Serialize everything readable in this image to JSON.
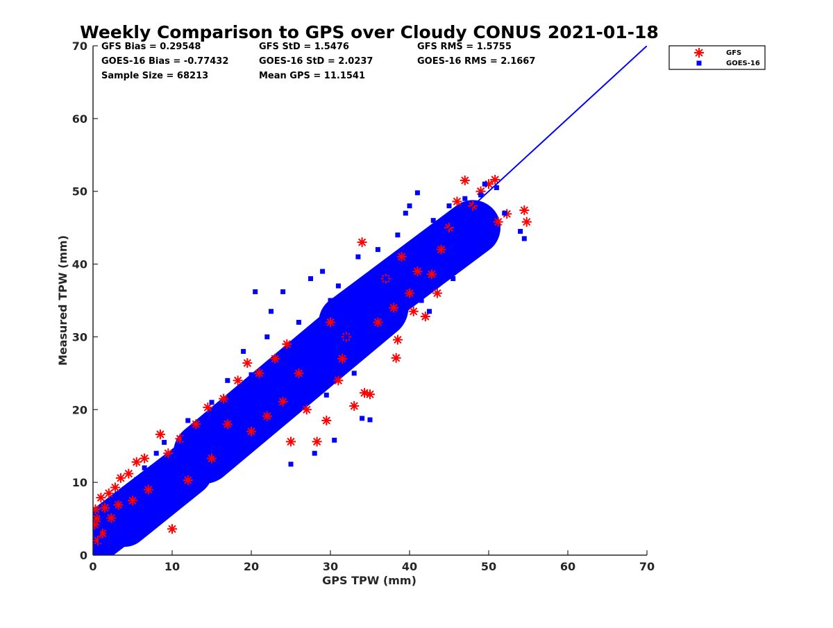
{
  "chart_data": {
    "type": "scatter",
    "title": "Weekly Comparison to GPS over Cloudy CONUS 2021-01-18",
    "xlabel": "GPS TPW (mm)",
    "ylabel": "Measured TPW (mm)",
    "xlim": [
      0,
      70
    ],
    "ylim": [
      0,
      70
    ],
    "x_ticks": [
      "0",
      "10",
      "20",
      "30",
      "40",
      "50",
      "60",
      "70"
    ],
    "y_ticks": [
      "0",
      "10",
      "20",
      "30",
      "40",
      "50",
      "60",
      "70"
    ],
    "grid": false,
    "legend_position": "outside-top-right",
    "stats": [
      [
        "GFS Bias = 0.29548",
        "GFS StD = 1.5476",
        "GFS RMS = 1.5755"
      ],
      [
        "GOES-16 Bias = -0.77432",
        "GOES-16 StD = 2.0237",
        "GOES-16 RMS = 2.1667"
      ],
      [
        "Sample Size = 68213",
        "Mean GPS = 11.1541",
        ""
      ]
    ],
    "series": [
      {
        "name": "GFS",
        "marker": "asterisk",
        "color": "#ff0000",
        "points": [
          [
            0.2,
            4.2
          ],
          [
            0.3,
            6.3
          ],
          [
            0.5,
            5.0
          ],
          [
            0.6,
            2.0
          ],
          [
            1.0,
            7.9
          ],
          [
            1.2,
            3.0
          ],
          [
            1.5,
            6.5
          ],
          [
            2.0,
            8.5
          ],
          [
            2.3,
            5.1
          ],
          [
            2.8,
            9.3
          ],
          [
            3.5,
            10.6
          ],
          [
            3.2,
            6.9
          ],
          [
            4.5,
            11.2
          ],
          [
            5.0,
            7.5
          ],
          [
            5.5,
            12.8
          ],
          [
            6.5,
            13.3
          ],
          [
            7.0,
            9.0
          ],
          [
            8.5,
            16.6
          ],
          [
            9.5,
            14.0
          ],
          [
            10.0,
            3.6
          ],
          [
            11.0,
            16.0
          ],
          [
            12.0,
            10.3
          ],
          [
            13.0,
            18.0
          ],
          [
            14.5,
            20.3
          ],
          [
            15.0,
            13.3
          ],
          [
            16.5,
            21.5
          ],
          [
            17.0,
            18.0
          ],
          [
            18.3,
            24.0
          ],
          [
            19.5,
            26.4
          ],
          [
            20.0,
            17.0
          ],
          [
            21.0,
            25.0
          ],
          [
            22.0,
            19.1
          ],
          [
            23.0,
            27.0
          ],
          [
            24.0,
            21.1
          ],
          [
            24.5,
            29.0
          ],
          [
            25.0,
            15.6
          ],
          [
            26.0,
            25.0
          ],
          [
            27.0,
            20.0
          ],
          [
            28.3,
            15.6
          ],
          [
            29.5,
            18.5
          ],
          [
            30.0,
            32.0
          ],
          [
            31.0,
            24.0
          ],
          [
            31.5,
            27.0
          ],
          [
            32.0,
            30.0
          ],
          [
            33.0,
            20.5
          ],
          [
            34.0,
            43.0
          ],
          [
            34.3,
            22.3
          ],
          [
            35.0,
            22.1
          ],
          [
            36.0,
            32.0
          ],
          [
            37.0,
            38.0
          ],
          [
            38.0,
            34.0
          ],
          [
            38.3,
            27.1
          ],
          [
            38.5,
            29.6
          ],
          [
            39.0,
            41.0
          ],
          [
            40.0,
            36.0
          ],
          [
            40.5,
            33.5
          ],
          [
            41.0,
            39.0
          ],
          [
            42.0,
            32.8
          ],
          [
            42.8,
            38.6
          ],
          [
            43.5,
            36.0
          ],
          [
            44.0,
            42.0
          ],
          [
            45.0,
            45.0
          ],
          [
            46.0,
            48.6
          ],
          [
            47.0,
            51.5
          ],
          [
            48.0,
            48.0
          ],
          [
            49.0,
            50.0
          ],
          [
            50.0,
            51.0
          ],
          [
            50.8,
            51.6
          ],
          [
            51.2,
            45.8
          ],
          [
            52.3,
            46.9
          ],
          [
            54.5,
            47.4
          ],
          [
            54.8,
            45.8
          ]
        ]
      },
      {
        "name": "GOES-16",
        "marker": "square",
        "color": "#0000ff",
        "points": [
          [
            0.3,
            1.0
          ],
          [
            0.6,
            3.2
          ],
          [
            1.0,
            2.0
          ],
          [
            1.2,
            5.2
          ],
          [
            2.0,
            3.0
          ],
          [
            2.5,
            6.3
          ],
          [
            3.0,
            4.0
          ],
          [
            3.5,
            8.0
          ],
          [
            4.0,
            5.0
          ],
          [
            4.5,
            9.5
          ],
          [
            5.0,
            4.0
          ],
          [
            5.5,
            10.4
          ],
          [
            6.0,
            6.0
          ],
          [
            6.5,
            12.0
          ],
          [
            7.0,
            7.0
          ],
          [
            8.0,
            14.0
          ],
          [
            8.5,
            9.0
          ],
          [
            9.0,
            15.5
          ],
          [
            9.5,
            10.0
          ],
          [
            10.0,
            13.5
          ],
          [
            11.0,
            11.0
          ],
          [
            11.5,
            16.0
          ],
          [
            12.0,
            18.5
          ],
          [
            13.0,
            12.0
          ],
          [
            14.0,
            17.0
          ],
          [
            15.0,
            21.0
          ],
          [
            15.5,
            14.0
          ],
          [
            16.0,
            19.0
          ],
          [
            17.0,
            24.0
          ],
          [
            18.0,
            20.0
          ],
          [
            19.0,
            28.0
          ],
          [
            19.5,
            22.0
          ],
          [
            20.0,
            24.8
          ],
          [
            20.5,
            36.2
          ],
          [
            21.0,
            22.0
          ],
          [
            22.0,
            30.0
          ],
          [
            22.5,
            33.5
          ],
          [
            23.0,
            25.0
          ],
          [
            24.0,
            36.2
          ],
          [
            24.5,
            20.5
          ],
          [
            25.0,
            12.5
          ],
          [
            25.5,
            28.0
          ],
          [
            26.0,
            32.0
          ],
          [
            27.0,
            25.0
          ],
          [
            27.5,
            38.0
          ],
          [
            28.0,
            14.0
          ],
          [
            28.5,
            30.0
          ],
          [
            29.0,
            39.0
          ],
          [
            29.5,
            22.0
          ],
          [
            30.0,
            35.0
          ],
          [
            30.5,
            15.8
          ],
          [
            31.0,
            37.0
          ],
          [
            32.0,
            30.0
          ],
          [
            33.0,
            25.0
          ],
          [
            33.5,
            41.0
          ],
          [
            34.0,
            18.8
          ],
          [
            35.0,
            18.6
          ],
          [
            35.5,
            33.0
          ],
          [
            36.0,
            42.0
          ],
          [
            37.0,
            38.0
          ],
          [
            38.0,
            32.0
          ],
          [
            38.5,
            44.0
          ],
          [
            39.0,
            36.0
          ],
          [
            39.5,
            47.0
          ],
          [
            40.0,
            48.0
          ],
          [
            40.5,
            38.0
          ],
          [
            41.0,
            49.8
          ],
          [
            41.5,
            35.0
          ],
          [
            42.0,
            44.0
          ],
          [
            42.5,
            33.5
          ],
          [
            43.0,
            46.0
          ],
          [
            44.0,
            40.0
          ],
          [
            45.0,
            48.0
          ],
          [
            45.5,
            38.0
          ],
          [
            46.0,
            42.0
          ],
          [
            47.0,
            49.0
          ],
          [
            48.0,
            45.0
          ],
          [
            49.0,
            49.5
          ],
          [
            49.5,
            51.0
          ],
          [
            50.0,
            44.0
          ],
          [
            51.0,
            50.5
          ],
          [
            52.0,
            47.0
          ],
          [
            54.0,
            44.5
          ],
          [
            54.5,
            43.5
          ]
        ]
      },
      {
        "name": "1:1 line",
        "marker": "line",
        "color": "#0000ff",
        "points": [
          [
            0,
            0
          ],
          [
            70,
            70
          ]
        ]
      }
    ],
    "density_bands": [
      {
        "color": "#0000ff",
        "start": [
          0.5,
          2.5
        ],
        "end": [
          18,
          17
        ],
        "width": 3.2
      },
      {
        "color": "#0000ff",
        "start": [
          14,
          14
        ],
        "end": [
          36,
          34
        ],
        "width": 4.0
      },
      {
        "color": "#0000ff",
        "start": [
          32,
          32
        ],
        "end": [
          48,
          45
        ],
        "width": 3.6
      },
      {
        "color": "#0000ff",
        "start": [
          4,
          4.5
        ],
        "end": [
          12,
          11.5
        ],
        "width": 3.2
      }
    ]
  }
}
